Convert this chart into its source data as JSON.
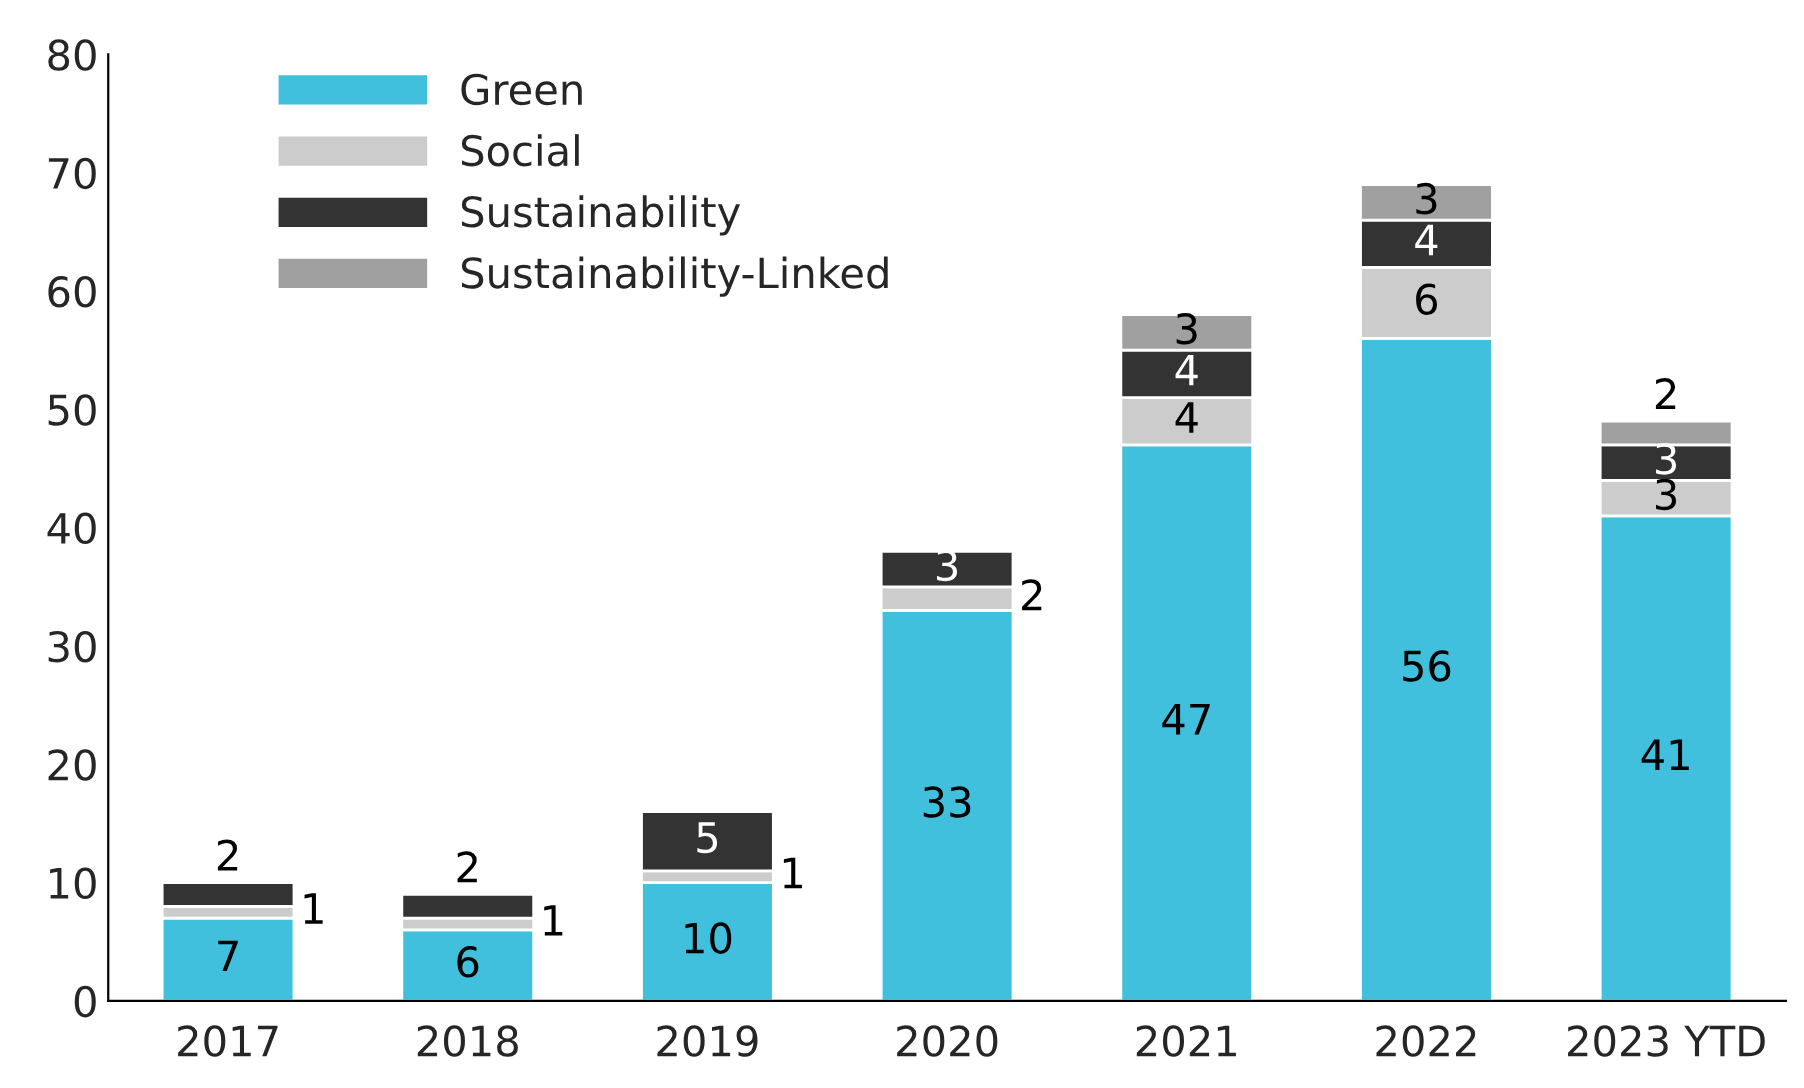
{
  "chart_data": {
    "type": "bar",
    "stacked": true,
    "data_labels": true,
    "legend": "top left",
    "grid": false,
    "categories": [
      "2017",
      "2018",
      "2019",
      "2020",
      "2021",
      "2022",
      "2023 YTD"
    ],
    "ylim": [
      0,
      80
    ],
    "yticks": [
      0,
      10,
      20,
      30,
      40,
      50,
      60,
      70,
      80
    ],
    "series": [
      {
        "name": "Green",
        "color": "#40c0dd",
        "values": [
          7,
          6,
          10,
          33,
          47,
          56,
          41
        ]
      },
      {
        "name": "Social",
        "color": "#cccccc",
        "values": [
          1,
          1,
          1,
          2,
          4,
          6,
          3
        ]
      },
      {
        "name": "Sustainability",
        "color": "#333333",
        "values": [
          2,
          2,
          5,
          3,
          4,
          4,
          3
        ]
      },
      {
        "name": "Sustainability-Linked",
        "color": "#a0a0a0",
        "values": [
          null,
          null,
          null,
          null,
          3,
          3,
          2
        ]
      }
    ]
  }
}
